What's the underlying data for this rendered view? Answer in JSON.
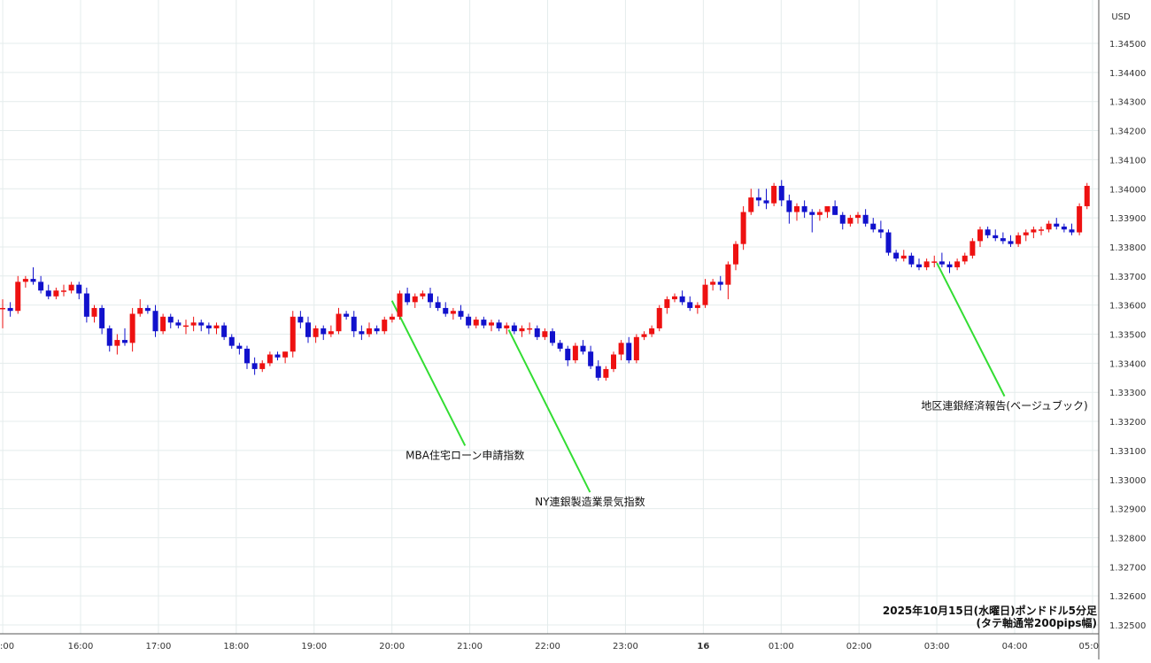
{
  "chart_data": {
    "type": "candlestick",
    "currency": "USD",
    "caption_line1": "2025年10月15日(水曜日)ポンドドル5分足",
    "caption_line2": "(タテ軸通常200pips幅)",
    "ylim": [
      1.325,
      1.346
    ],
    "y_ticks": [
      "1.34500",
      "1.34400",
      "1.34300",
      "1.34200",
      "1.34100",
      "1.34000",
      "1.33900",
      "1.33800",
      "1.33700",
      "1.33600",
      "1.33500",
      "1.33400",
      "1.33300",
      "1.33200",
      "1.33100",
      "1.33000",
      "1.32900",
      "1.32800",
      "1.32700",
      "1.32600",
      "1.32500"
    ],
    "x_ticks": [
      {
        "label": ":00",
        "hour": 15
      },
      {
        "label": "16:00",
        "hour": 16
      },
      {
        "label": "17:00",
        "hour": 17
      },
      {
        "label": "18:00",
        "hour": 18
      },
      {
        "label": "19:00",
        "hour": 19
      },
      {
        "label": "20:00",
        "hour": 20
      },
      {
        "label": "21:00",
        "hour": 21
      },
      {
        "label": "22:00",
        "hour": 22
      },
      {
        "label": "23:00",
        "hour": 23
      },
      {
        "label": "16",
        "hour": 24
      },
      {
        "label": "01:00",
        "hour": 25
      },
      {
        "label": "02:00",
        "hour": 26
      },
      {
        "label": "03:00",
        "hour": 27
      },
      {
        "label": "04:00",
        "hour": 28
      },
      {
        "label": "05:0",
        "hour": 29
      }
    ],
    "colors": {
      "up": "#ee1111",
      "down": "#1111cc",
      "annotation_line": "#33dd33",
      "grid": "#e4ecec"
    },
    "annotations": [
      {
        "text": "MBA住宅ローン申請指数",
        "hour": 20.0,
        "price": 1.33615,
        "label_price": 1.3308
      },
      {
        "text": "NY連銀製造業景気指数",
        "hour": 21.5,
        "price": 1.33515,
        "label_price": 1.3292
      },
      {
        "text": "地区連銀経済報告(ベージュブック)",
        "hour": 27.0,
        "price": 1.33745,
        "label_price": 1.3325
      }
    ],
    "candles": [
      [
        1.3359,
        1.3362,
        1.3352,
        1.3359
      ],
      [
        1.3359,
        1.3361,
        1.3356,
        1.3358
      ],
      [
        1.3358,
        1.337,
        1.3357,
        1.3368
      ],
      [
        1.3368,
        1.337,
        1.3366,
        1.3369
      ],
      [
        1.3369,
        1.3373,
        1.3367,
        1.3368
      ],
      [
        1.3368,
        1.337,
        1.3364,
        1.3365
      ],
      [
        1.3365,
        1.3367,
        1.3362,
        1.3363
      ],
      [
        1.3363,
        1.3366,
        1.3362,
        1.3365
      ],
      [
        1.3365,
        1.3367,
        1.3363,
        1.3365
      ],
      [
        1.3365,
        1.3368,
        1.3364,
        1.3367
      ],
      [
        1.3367,
        1.3368,
        1.3362,
        1.3364
      ],
      [
        1.3364,
        1.3366,
        1.3354,
        1.3356
      ],
      [
        1.3356,
        1.336,
        1.3354,
        1.3359
      ],
      [
        1.3359,
        1.336,
        1.335,
        1.3352
      ],
      [
        1.3352,
        1.3353,
        1.3344,
        1.3346
      ],
      [
        1.3346,
        1.335,
        1.3343,
        1.3348
      ],
      [
        1.3348,
        1.3352,
        1.3346,
        1.3347
      ],
      [
        1.3347,
        1.3359,
        1.3344,
        1.3357
      ],
      [
        1.3357,
        1.3362,
        1.3356,
        1.3359
      ],
      [
        1.3359,
        1.336,
        1.3357,
        1.3358
      ],
      [
        1.3358,
        1.336,
        1.3349,
        1.3351
      ],
      [
        1.3351,
        1.3357,
        1.335,
        1.3356
      ],
      [
        1.3356,
        1.3357,
        1.3352,
        1.3354
      ],
      [
        1.3354,
        1.3355,
        1.3352,
        1.3353
      ],
      [
        1.3353,
        1.3355,
        1.335,
        1.3353
      ],
      [
        1.3353,
        1.3356,
        1.3351,
        1.3354
      ],
      [
        1.3354,
        1.3355,
        1.3351,
        1.3353
      ],
      [
        1.3353,
        1.3354,
        1.335,
        1.3352
      ],
      [
        1.3352,
        1.3354,
        1.335,
        1.3353
      ],
      [
        1.3353,
        1.3354,
        1.3348,
        1.3349
      ],
      [
        1.3349,
        1.335,
        1.3345,
        1.3346
      ],
      [
        1.3346,
        1.3347,
        1.3343,
        1.3345
      ],
      [
        1.3345,
        1.3346,
        1.3338,
        1.334
      ],
      [
        1.334,
        1.3342,
        1.3336,
        1.3338
      ],
      [
        1.3338,
        1.3341,
        1.3337,
        1.334
      ],
      [
        1.334,
        1.3344,
        1.3339,
        1.3343
      ],
      [
        1.3343,
        1.3344,
        1.3341,
        1.3342
      ],
      [
        1.3342,
        1.3344,
        1.334,
        1.3344
      ],
      [
        1.3344,
        1.3358,
        1.3342,
        1.3356
      ],
      [
        1.3356,
        1.3358,
        1.3352,
        1.3354
      ],
      [
        1.3354,
        1.3356,
        1.3347,
        1.3349
      ],
      [
        1.3349,
        1.3353,
        1.3347,
        1.3352
      ],
      [
        1.3352,
        1.3353,
        1.3348,
        1.335
      ],
      [
        1.335,
        1.3353,
        1.3349,
        1.3351
      ],
      [
        1.3351,
        1.3359,
        1.335,
        1.3357
      ],
      [
        1.3357,
        1.3358,
        1.3355,
        1.3356
      ],
      [
        1.3356,
        1.3358,
        1.3349,
        1.3351
      ],
      [
        1.3351,
        1.3353,
        1.3348,
        1.335
      ],
      [
        1.335,
        1.3354,
        1.3349,
        1.3352
      ],
      [
        1.3352,
        1.3353,
        1.335,
        1.3351
      ],
      [
        1.3351,
        1.3356,
        1.335,
        1.3355
      ],
      [
        1.3355,
        1.3357,
        1.3354,
        1.3356
      ],
      [
        1.3356,
        1.3365,
        1.3355,
        1.3364
      ],
      [
        1.3364,
        1.3366,
        1.336,
        1.3361
      ],
      [
        1.3361,
        1.3364,
        1.3359,
        1.3363
      ],
      [
        1.3363,
        1.3365,
        1.3362,
        1.3364
      ],
      [
        1.3364,
        1.3366,
        1.3359,
        1.3361
      ],
      [
        1.3361,
        1.3363,
        1.3358,
        1.3359
      ],
      [
        1.3359,
        1.3361,
        1.3356,
        1.3357
      ],
      [
        1.3357,
        1.3359,
        1.3355,
        1.3358
      ],
      [
        1.3358,
        1.336,
        1.3355,
        1.3356
      ],
      [
        1.3356,
        1.3357,
        1.3352,
        1.3353
      ],
      [
        1.3353,
        1.3356,
        1.3352,
        1.3355
      ],
      [
        1.3355,
        1.3356,
        1.3352,
        1.3353
      ],
      [
        1.3353,
        1.3355,
        1.3351,
        1.3354
      ],
      [
        1.3354,
        1.3355,
        1.3351,
        1.3352
      ],
      [
        1.3352,
        1.3354,
        1.335,
        1.3353
      ],
      [
        1.3353,
        1.3354,
        1.335,
        1.3351
      ],
      [
        1.3351,
        1.3353,
        1.3349,
        1.3352
      ],
      [
        1.3352,
        1.3354,
        1.335,
        1.3352
      ],
      [
        1.3352,
        1.3353,
        1.3348,
        1.3349
      ],
      [
        1.3349,
        1.3352,
        1.3348,
        1.3351
      ],
      [
        1.3351,
        1.3352,
        1.3346,
        1.3347
      ],
      [
        1.3347,
        1.3348,
        1.3344,
        1.3345
      ],
      [
        1.3345,
        1.3346,
        1.3339,
        1.3341
      ],
      [
        1.3341,
        1.3347,
        1.334,
        1.3346
      ],
      [
        1.3346,
        1.3348,
        1.3343,
        1.3344
      ],
      [
        1.3344,
        1.3346,
        1.3338,
        1.3339
      ],
      [
        1.3339,
        1.3341,
        1.3334,
        1.3335
      ],
      [
        1.3335,
        1.3339,
        1.3334,
        1.3338
      ],
      [
        1.3338,
        1.3344,
        1.3337,
        1.3343
      ],
      [
        1.3343,
        1.3348,
        1.3341,
        1.3347
      ],
      [
        1.3347,
        1.3349,
        1.334,
        1.3341
      ],
      [
        1.3341,
        1.335,
        1.334,
        1.3349
      ],
      [
        1.3349,
        1.3351,
        1.3348,
        1.335
      ],
      [
        1.335,
        1.3353,
        1.3349,
        1.3352
      ],
      [
        1.3352,
        1.336,
        1.3351,
        1.3359
      ],
      [
        1.3359,
        1.3363,
        1.3357,
        1.3362
      ],
      [
        1.3362,
        1.3364,
        1.3361,
        1.3363
      ],
      [
        1.3363,
        1.3365,
        1.336,
        1.3361
      ],
      [
        1.3361,
        1.3363,
        1.3358,
        1.3359
      ],
      [
        1.3359,
        1.3361,
        1.3357,
        1.336
      ],
      [
        1.336,
        1.3369,
        1.3359,
        1.3367
      ],
      [
        1.3367,
        1.3369,
        1.3365,
        1.3368
      ],
      [
        1.3368,
        1.337,
        1.3365,
        1.3367
      ],
      [
        1.3367,
        1.3375,
        1.3362,
        1.3374
      ],
      [
        1.3374,
        1.3382,
        1.3372,
        1.3381
      ],
      [
        1.3381,
        1.3394,
        1.3379,
        1.3392
      ],
      [
        1.3392,
        1.34,
        1.3391,
        1.3397
      ],
      [
        1.3397,
        1.34,
        1.3394,
        1.3396
      ],
      [
        1.3396,
        1.34,
        1.3393,
        1.3395
      ],
      [
        1.3395,
        1.3402,
        1.3394,
        1.3401
      ],
      [
        1.3401,
        1.3403,
        1.3394,
        1.3396
      ],
      [
        1.3396,
        1.3398,
        1.3388,
        1.3392
      ],
      [
        1.3392,
        1.3395,
        1.3389,
        1.3394
      ],
      [
        1.3394,
        1.3396,
        1.339,
        1.3392
      ],
      [
        1.3392,
        1.3393,
        1.3385,
        1.3391
      ],
      [
        1.3391,
        1.3393,
        1.3389,
        1.3392
      ],
      [
        1.3392,
        1.3394,
        1.339,
        1.3394
      ],
      [
        1.3394,
        1.3396,
        1.3391,
        1.3391
      ],
      [
        1.3391,
        1.3392,
        1.3386,
        1.3388
      ],
      [
        1.3388,
        1.3391,
        1.3387,
        1.339
      ],
      [
        1.339,
        1.3392,
        1.3388,
        1.3391
      ],
      [
        1.3391,
        1.3393,
        1.3387,
        1.3388
      ],
      [
        1.3388,
        1.339,
        1.3385,
        1.3386
      ],
      [
        1.3386,
        1.3389,
        1.3383,
        1.3385
      ],
      [
        1.3385,
        1.3386,
        1.3377,
        1.3378
      ],
      [
        1.3378,
        1.3379,
        1.3375,
        1.3376
      ],
      [
        1.3376,
        1.3379,
        1.3375,
        1.3377
      ],
      [
        1.3377,
        1.3378,
        1.3373,
        1.3374
      ],
      [
        1.3374,
        1.3376,
        1.3372,
        1.3373
      ],
      [
        1.3373,
        1.3376,
        1.3372,
        1.3375
      ],
      [
        1.3375,
        1.3377,
        1.3373,
        1.3375
      ],
      [
        1.3375,
        1.3378,
        1.3373,
        1.3374
      ],
      [
        1.3374,
        1.3375,
        1.3371,
        1.3373
      ],
      [
        1.3373,
        1.3376,
        1.3372,
        1.3375
      ],
      [
        1.3375,
        1.3378,
        1.3374,
        1.3377
      ],
      [
        1.3377,
        1.3383,
        1.3376,
        1.3382
      ],
      [
        1.3382,
        1.3387,
        1.338,
        1.3386
      ],
      [
        1.3386,
        1.3387,
        1.3383,
        1.3384
      ],
      [
        1.3384,
        1.3386,
        1.3382,
        1.3383
      ],
      [
        1.3383,
        1.3385,
        1.3381,
        1.3382
      ],
      [
        1.3382,
        1.3384,
        1.338,
        1.3381
      ],
      [
        1.3381,
        1.3385,
        1.338,
        1.3384
      ],
      [
        1.3384,
        1.3386,
        1.3382,
        1.3385
      ],
      [
        1.3385,
        1.3387,
        1.3383,
        1.3386
      ],
      [
        1.3386,
        1.3387,
        1.3384,
        1.3386
      ],
      [
        1.3386,
        1.3389,
        1.3385,
        1.3388
      ],
      [
        1.3388,
        1.339,
        1.3386,
        1.3387
      ],
      [
        1.3387,
        1.3388,
        1.3385,
        1.3386
      ],
      [
        1.3386,
        1.3388,
        1.3384,
        1.3385
      ],
      [
        1.3385,
        1.3395,
        1.3384,
        1.3394
      ],
      [
        1.3394,
        1.3402,
        1.3393,
        1.3401
      ]
    ]
  }
}
